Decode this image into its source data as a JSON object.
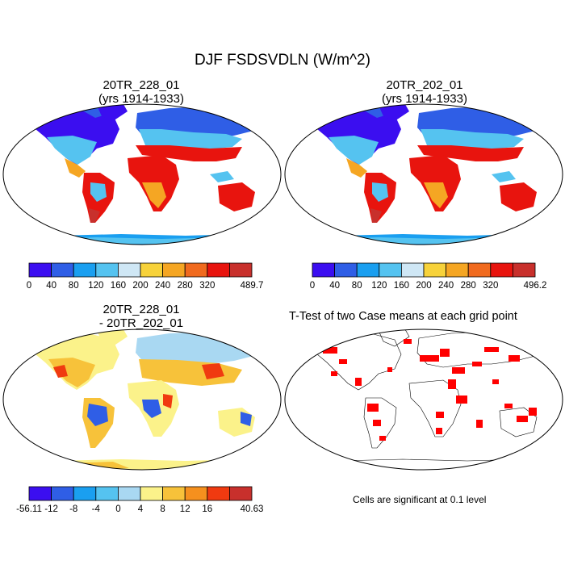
{
  "figure": {
    "main_title": "DJF FSDSVDLN (W/m^2)"
  },
  "panels": {
    "top_left": {
      "title_line1": "20TR_228_01",
      "title_line2": "(yrs 1914-1933)"
    },
    "top_right": {
      "title_line1": "20TR_202_01",
      "title_line2": "(yrs 1914-1933)"
    },
    "bottom_left": {
      "title_line1": "20TR_228_01",
      "title_line2": "- 20TR_202_01"
    },
    "bottom_right": {
      "title": "T-Test of two Case means at each grid point",
      "note": "Cells are significant at 0.1 level"
    }
  },
  "colorbars": {
    "case1": {
      "labels": [
        "0",
        "40",
        "80",
        "120",
        "160",
        "200",
        "240",
        "280",
        "320",
        "489.7"
      ],
      "colors": [
        "#3b0ef0",
        "#2f5ee6",
        "#1a9ff0",
        "#55c3f0",
        "#cfe7f5",
        "#f7d23a",
        "#f5a623",
        "#f06a1e",
        "#e8140e",
        "#c8302c"
      ]
    },
    "case2": {
      "labels": [
        "0",
        "40",
        "80",
        "120",
        "160",
        "200",
        "240",
        "280",
        "320",
        "496.2"
      ],
      "colors": [
        "#3b0ef0",
        "#2f5ee6",
        "#1a9ff0",
        "#55c3f0",
        "#cfe7f5",
        "#f7d23a",
        "#f5a623",
        "#f06a1e",
        "#e8140e",
        "#c8302c"
      ]
    },
    "diff": {
      "labels": [
        "-56.11",
        "-12",
        "-8",
        "-4",
        "0",
        "4",
        "8",
        "12",
        "16",
        "40.63"
      ],
      "colors": [
        "#3b0ef0",
        "#2f5ee6",
        "#1a9ff0",
        "#55c3f0",
        "#a9d8f2",
        "#fbf28a",
        "#f7c23a",
        "#f5901e",
        "#f03a10",
        "#c8302c"
      ]
    },
    "ttest_color": "#ff0000"
  }
}
